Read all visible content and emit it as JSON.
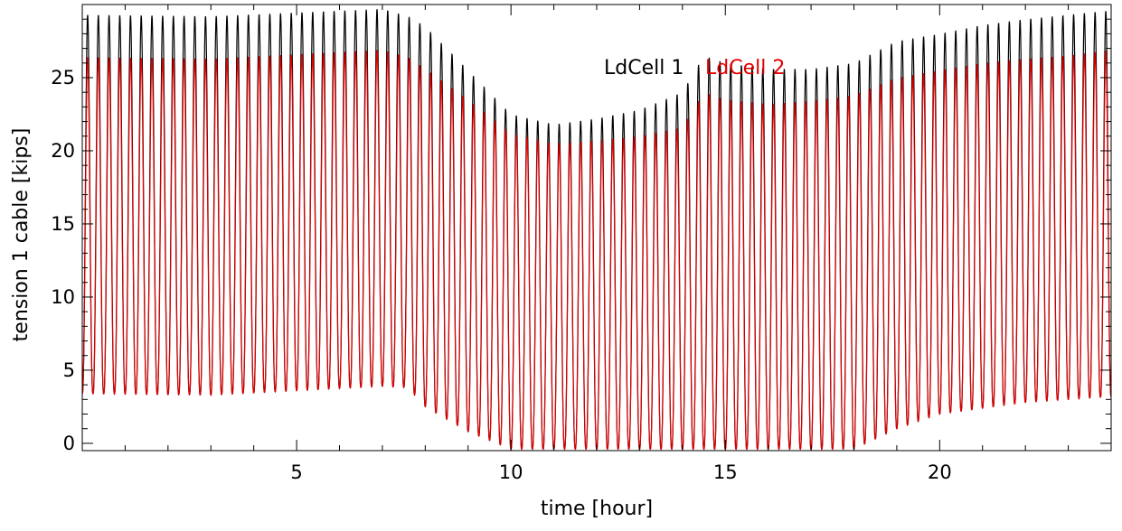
{
  "chart_data": {
    "type": "line",
    "title": "",
    "xlabel": "time [hour]",
    "ylabel": "tension 1 cable [kips]",
    "xlim": [
      0,
      24
    ],
    "ylim": [
      -0.5,
      30
    ],
    "xticks": [
      5,
      10,
      15,
      20
    ],
    "yticks": [
      0,
      5,
      10,
      15,
      20,
      25
    ],
    "grid": false,
    "legend_position": "top-center",
    "cycle_period_hours": 0.25,
    "series": [
      {
        "name": "LdCell 1",
        "color": "#000000",
        "envelope": {
          "t": [
            0,
            3,
            7,
            7.6,
            8,
            9,
            10,
            11,
            12,
            13,
            14,
            14.5,
            15,
            16,
            17,
            18,
            19,
            20,
            21,
            22,
            23,
            24
          ],
          "max": [
            29.3,
            29.2,
            29.7,
            29.2,
            28.5,
            25.5,
            22.5,
            21.8,
            22.2,
            22.8,
            24.0,
            26.5,
            26.0,
            25.6,
            25.6,
            26.0,
            27.5,
            28.0,
            28.6,
            29.0,
            29.3,
            29.6
          ],
          "min": [
            3.4,
            3.3,
            3.9,
            3.8,
            2.5,
            0.8,
            -0.4,
            -0.4,
            -0.4,
            -0.4,
            -0.4,
            -0.4,
            -0.4,
            -0.4,
            -0.4,
            -0.4,
            1.0,
            2.0,
            2.4,
            2.8,
            3.0,
            3.2
          ]
        }
      },
      {
        "name": "LdCell 2",
        "color": "#e00000",
        "envelope": {
          "t": [
            0,
            3,
            7,
            7.6,
            8,
            9,
            10,
            11,
            12,
            13,
            14,
            14.5,
            15,
            16,
            17,
            18,
            19,
            20,
            21,
            22,
            23,
            24
          ],
          "max": [
            26.4,
            26.3,
            26.9,
            26.4,
            25.6,
            23.5,
            21.2,
            20.5,
            20.7,
            21.0,
            21.6,
            24.0,
            23.5,
            23.2,
            23.4,
            23.8,
            25.0,
            25.5,
            26.0,
            26.3,
            26.5,
            26.9
          ],
          "min": [
            3.4,
            3.3,
            3.9,
            3.8,
            2.5,
            0.8,
            -0.4,
            -0.4,
            -0.4,
            -0.4,
            -0.4,
            -0.4,
            -0.4,
            -0.4,
            -0.4,
            -0.4,
            1.0,
            2.0,
            2.4,
            2.8,
            3.0,
            3.2
          ]
        }
      }
    ]
  }
}
